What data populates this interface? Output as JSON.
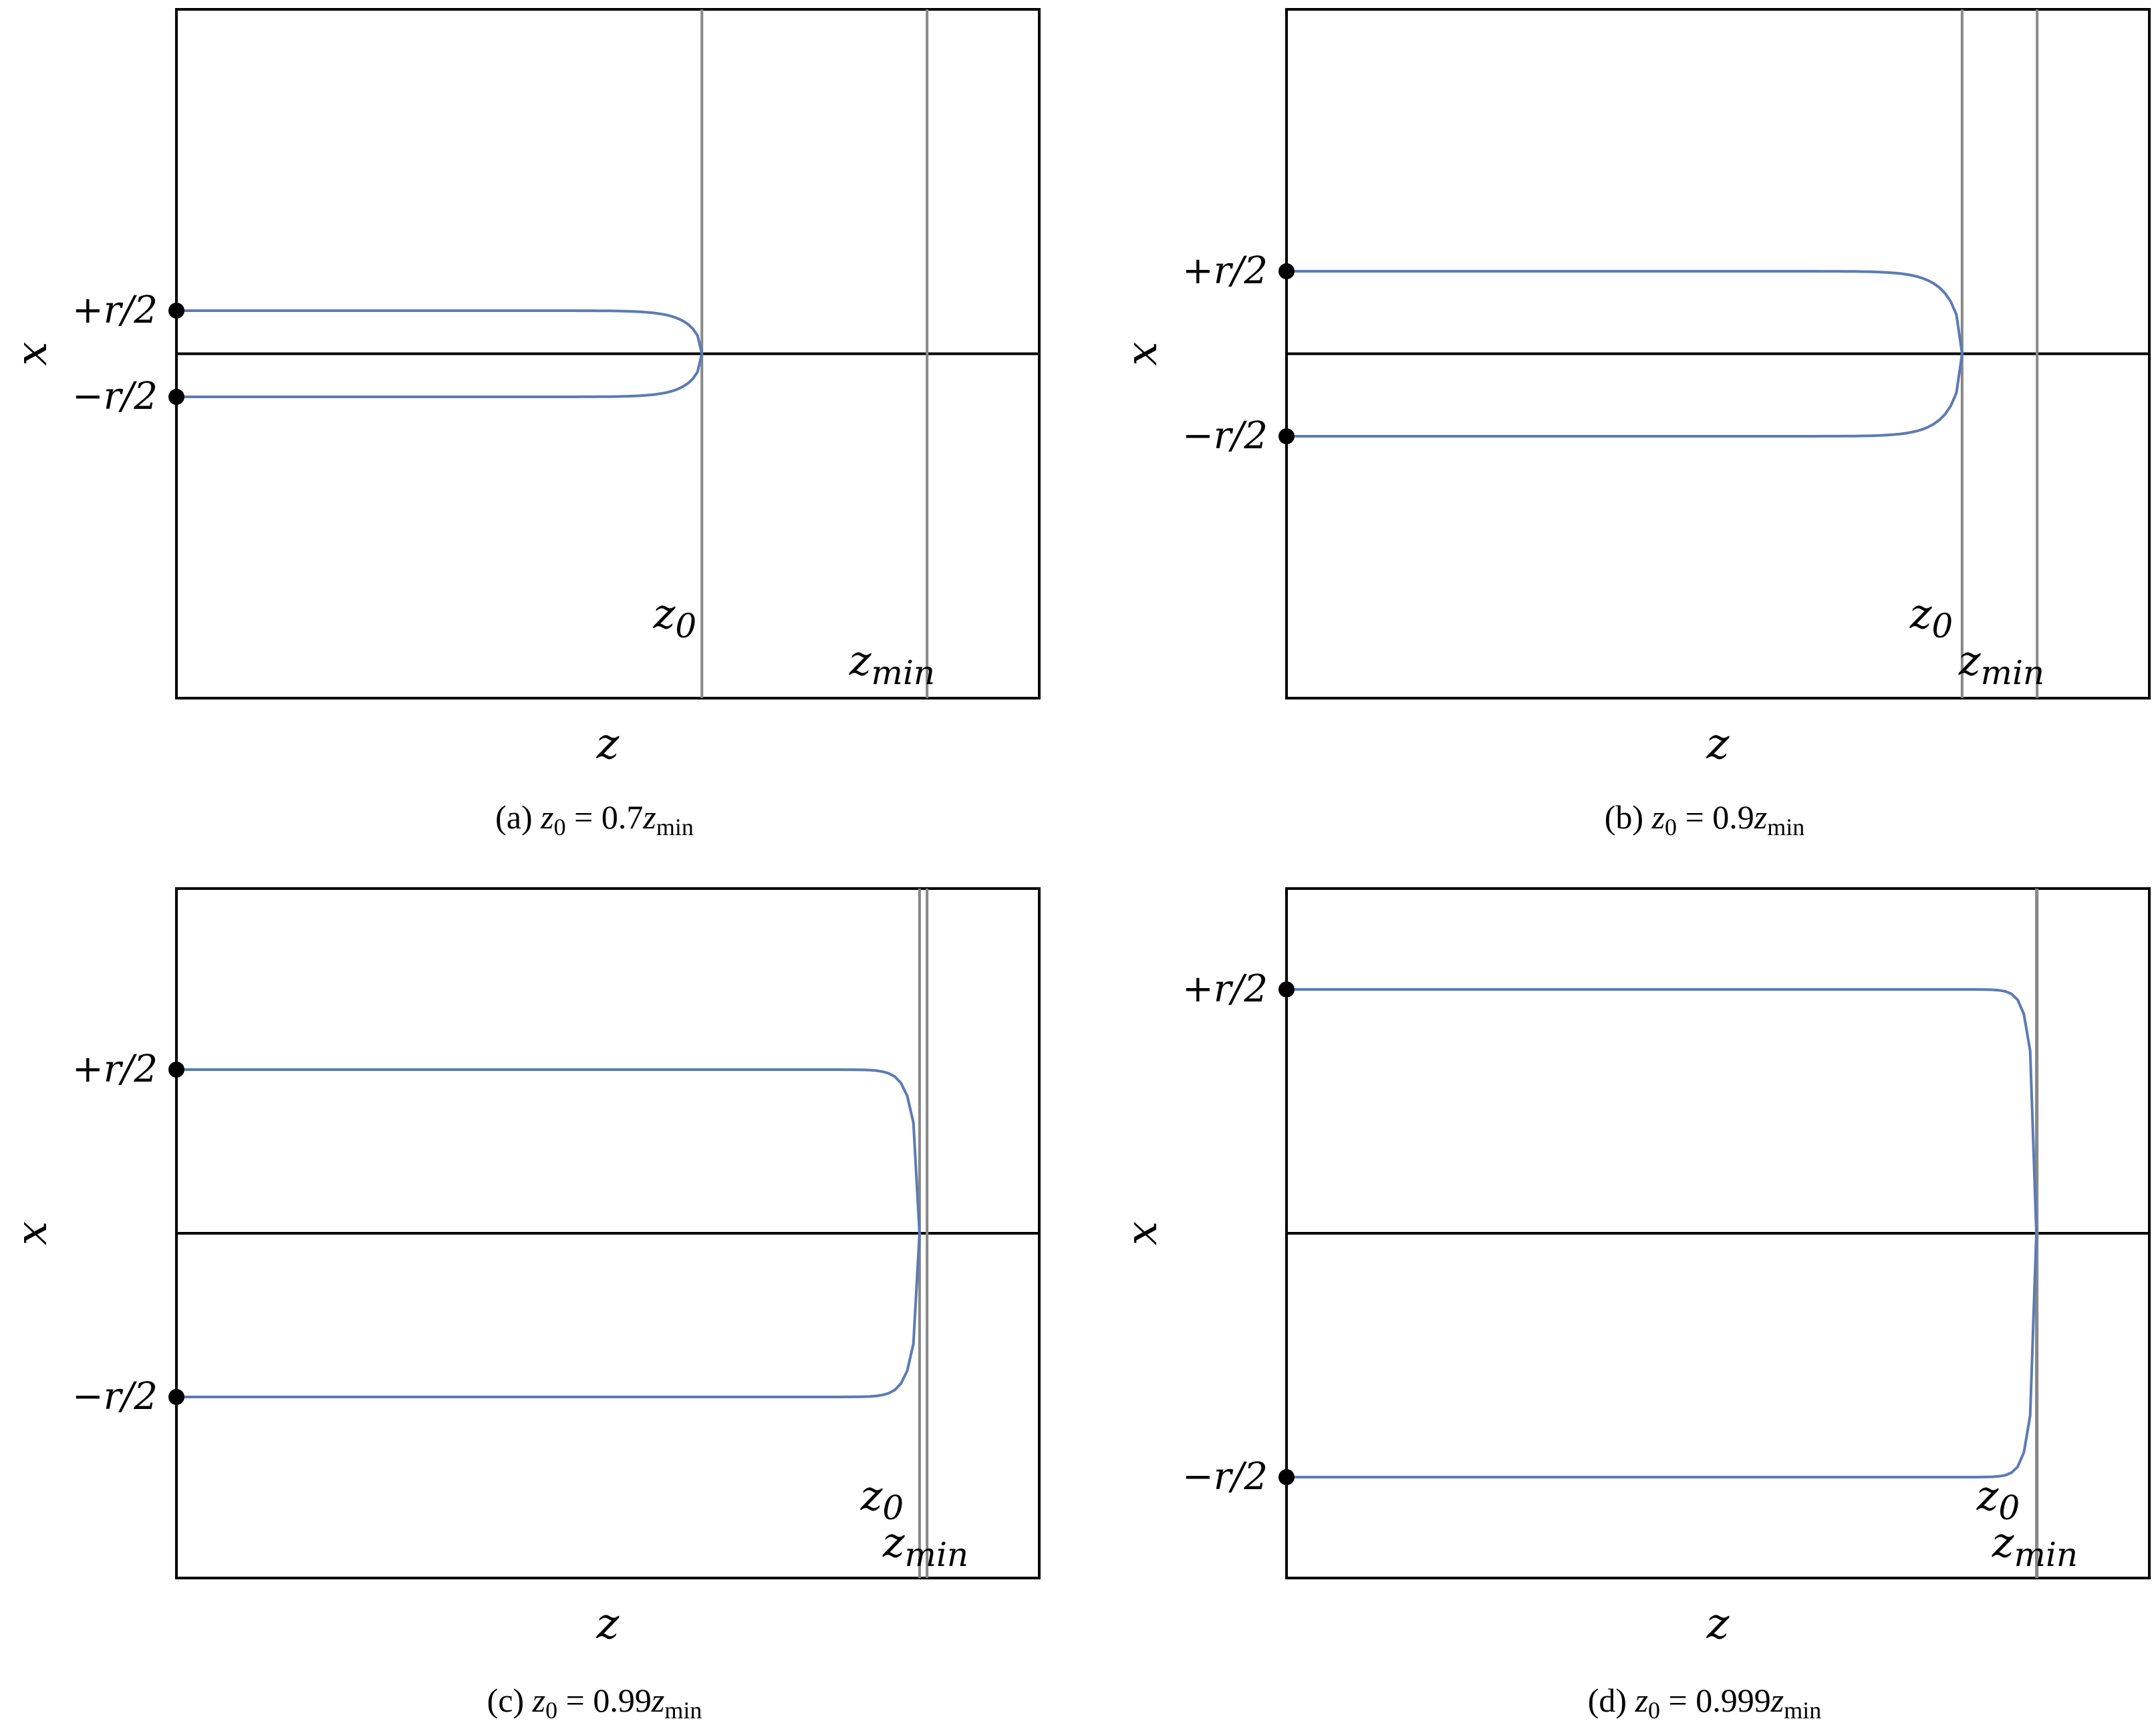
{
  "chart_data": [
    {
      "panel": "a",
      "type": "line",
      "caption": {
        "prefix": "(a)",
        "var": "z",
        "var_sub": "0",
        "equals": "=",
        "coef": "0.7",
        "ref": "z",
        "ref_sub": "min"
      },
      "xlabel": "z",
      "ylabel": "x",
      "ytick_labels": [
        "+r/2",
        "−r/2"
      ],
      "reference_lines": [
        {
          "label": "z",
          "sub": "0",
          "value": 0.7
        },
        {
          "label": "z",
          "sub": "min",
          "value": 1.0
        }
      ],
      "z0_over_zmin": 0.7,
      "half_width_over_r": 0.5,
      "endpoints": [
        "+r/2",
        "−r/2"
      ],
      "colors": {
        "curve": "#5b7bb4",
        "reference": "#888888",
        "axis": "#000000"
      }
    },
    {
      "panel": "b",
      "type": "line",
      "caption": {
        "prefix": "(b)",
        "var": "z",
        "var_sub": "0",
        "equals": "=",
        "coef": "0.9",
        "ref": "z",
        "ref_sub": "min"
      },
      "xlabel": "z",
      "ylabel": "x",
      "ytick_labels": [
        "+r/2",
        "−r/2"
      ],
      "reference_lines": [
        {
          "label": "z",
          "sub": "0",
          "value": 0.9
        },
        {
          "label": "z",
          "sub": "min",
          "value": 1.0
        }
      ],
      "z0_over_zmin": 0.9,
      "half_width_over_r": 0.5,
      "endpoints": [
        "+r/2",
        "−r/2"
      ],
      "colors": {
        "curve": "#5b7bb4",
        "reference": "#888888",
        "axis": "#000000"
      }
    },
    {
      "panel": "c",
      "type": "line",
      "caption": {
        "prefix": "(c)",
        "var": "z",
        "var_sub": "0",
        "equals": "=",
        "coef": "0.99",
        "ref": "z",
        "ref_sub": "min"
      },
      "xlabel": "z",
      "ylabel": "x",
      "ytick_labels": [
        "+r/2",
        "−r/2"
      ],
      "reference_lines": [
        {
          "label": "z",
          "sub": "0",
          "value": 0.99
        },
        {
          "label": "z",
          "sub": "min",
          "value": 1.0
        }
      ],
      "z0_over_zmin": 0.99,
      "half_width_over_r": 0.5,
      "endpoints": [
        "+r/2",
        "−r/2"
      ],
      "colors": {
        "curve": "#5b7bb4",
        "reference": "#888888",
        "axis": "#000000"
      }
    },
    {
      "panel": "d",
      "type": "line",
      "caption": {
        "prefix": "(d)",
        "var": "z",
        "var_sub": "0",
        "equals": "=",
        "coef": "0.999",
        "ref": "z",
        "ref_sub": "min"
      },
      "xlabel": "z",
      "ylabel": "x",
      "ytick_labels": [
        "+r/2",
        "−r/2"
      ],
      "reference_lines": [
        {
          "label": "z",
          "sub": "0",
          "value": 0.999
        },
        {
          "label": "z",
          "sub": "min",
          "value": 1.0
        }
      ],
      "z0_over_zmin": 0.999,
      "half_width_over_r": 0.5,
      "endpoints": [
        "+r/2",
        "−r/2"
      ],
      "colors": {
        "curve": "#5b7bb4",
        "reference": "#888888",
        "axis": "#000000"
      }
    }
  ]
}
